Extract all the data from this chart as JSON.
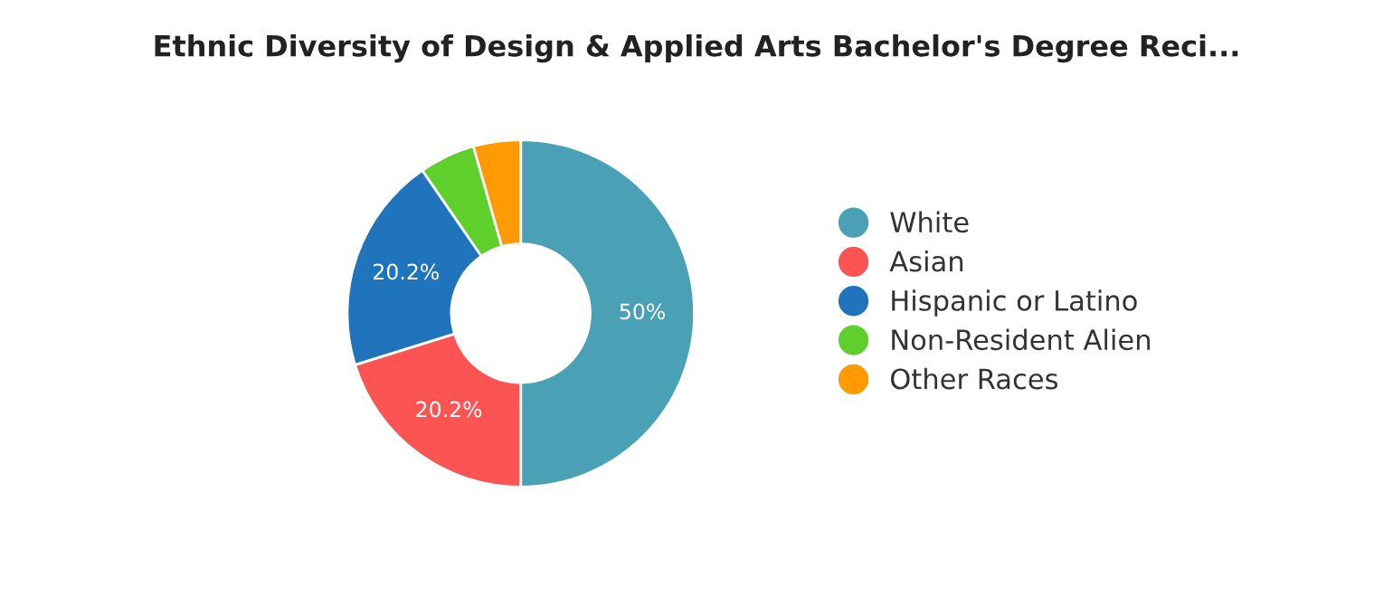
{
  "chart_data": {
    "type": "donut",
    "title": "Ethnic Diversity of Design & Applied Arts Bachelor's Degree Reci...",
    "categories": [
      "White",
      "Asian",
      "Hispanic or Latino",
      "Non-Resident Alien",
      "Other Races"
    ],
    "values": [
      50,
      20.2,
      20.2,
      5.2,
      4.4
    ],
    "colors": [
      "#4aa0b5",
      "#fc5353",
      "#1f74bb",
      "#5fcf2b",
      "#ff9a00"
    ],
    "value_labels": [
      "50%",
      "20.2%",
      "20.2%",
      null,
      null
    ],
    "legend": "right"
  }
}
